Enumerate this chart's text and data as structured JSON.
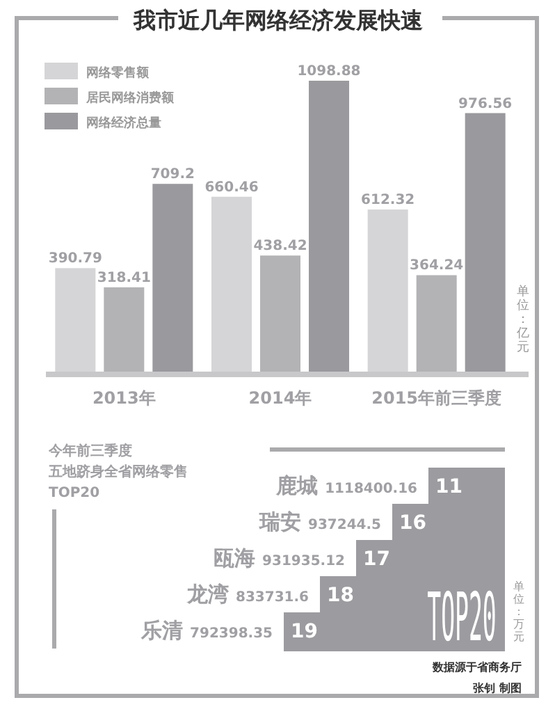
{
  "chart_data": [
    {
      "type": "bar",
      "title": "我市近几年网络经济发展快速",
      "categories": [
        "2013年",
        "2014年",
        "2015年前三季度"
      ],
      "series": [
        {
          "name": "网络零售额",
          "color": "#d5d5d7",
          "values": [
            390.79,
            660.46,
            612.32
          ]
        },
        {
          "name": "居民网络消费额",
          "color": "#b3b3b6",
          "values": [
            318.41,
            438.42,
            364.24
          ]
        },
        {
          "name": "网络经济总量",
          "color": "#9a9a9e",
          "values": [
            709.2,
            1098.88,
            976.56
          ]
        }
      ],
      "data_labels": true,
      "legend": "top left",
      "grid": false,
      "annotations": [
        "单位：亿元"
      ]
    },
    {
      "type": "other",
      "title": "今年前三季度",
      "subtitle": "五地跻身全省网络零售TOP20",
      "categories": [
        "鹿城",
        "瑞安",
        "瓯海",
        "龙湾",
        "乐清"
      ],
      "values": [
        1118400.16,
        937244.5,
        931935.12,
        833731.6,
        792398.35
      ],
      "data_labels": true,
      "annotations": [
        "11",
        "16",
        "17",
        "18",
        "19",
        "TOP20",
        "单位：万元",
        "数据源于省商务厅",
        "张钊 制图"
      ]
    }
  ]
}
